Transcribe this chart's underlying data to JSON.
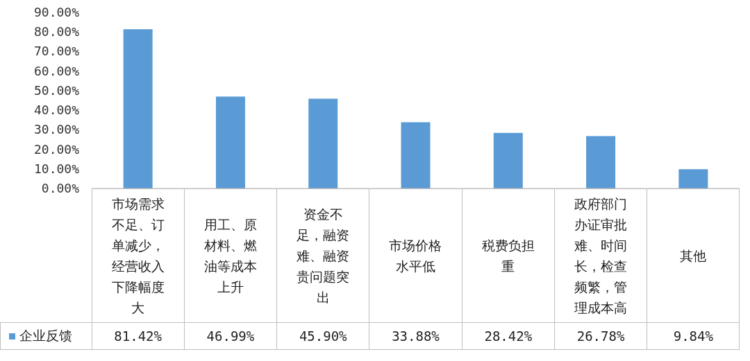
{
  "chart_data": {
    "type": "bar",
    "categories": [
      "市场需求不足、订单减少，经营收入下降幅度大",
      "用工、原材料、燃油等成本上升",
      "资金不足，融资难、融资贵问题突出",
      "市场价格水平低",
      "税费负担重",
      "政府部门办证审批难、时间长，检查频繁，管理成本高",
      "其他"
    ],
    "series": [
      {
        "name": "企业反馈",
        "color": "#5b9bd5",
        "values": [
          81.42,
          46.99,
          45.9,
          33.88,
          28.42,
          26.78,
          9.84
        ],
        "value_labels": [
          "81.42%",
          "46.99%",
          "45.90%",
          "33.88%",
          "28.42%",
          "26.78%",
          "9.84%"
        ]
      }
    ],
    "ylim": [
      0,
      90
    ],
    "yticks": [
      {
        "value": 0,
        "label": "0.00%"
      },
      {
        "value": 10,
        "label": "10.00%"
      },
      {
        "value": 20,
        "label": "20.00%"
      },
      {
        "value": 30,
        "label": "30.00%"
      },
      {
        "value": 40,
        "label": "40.00%"
      },
      {
        "value": 50,
        "label": "50.00%"
      },
      {
        "value": 60,
        "label": "60.00%"
      },
      {
        "value": 70,
        "label": "70.00%"
      },
      {
        "value": 80,
        "label": "80.00%"
      },
      {
        "value": 90,
        "label": "90.00%"
      }
    ],
    "grid": false,
    "legend": "bottom"
  }
}
